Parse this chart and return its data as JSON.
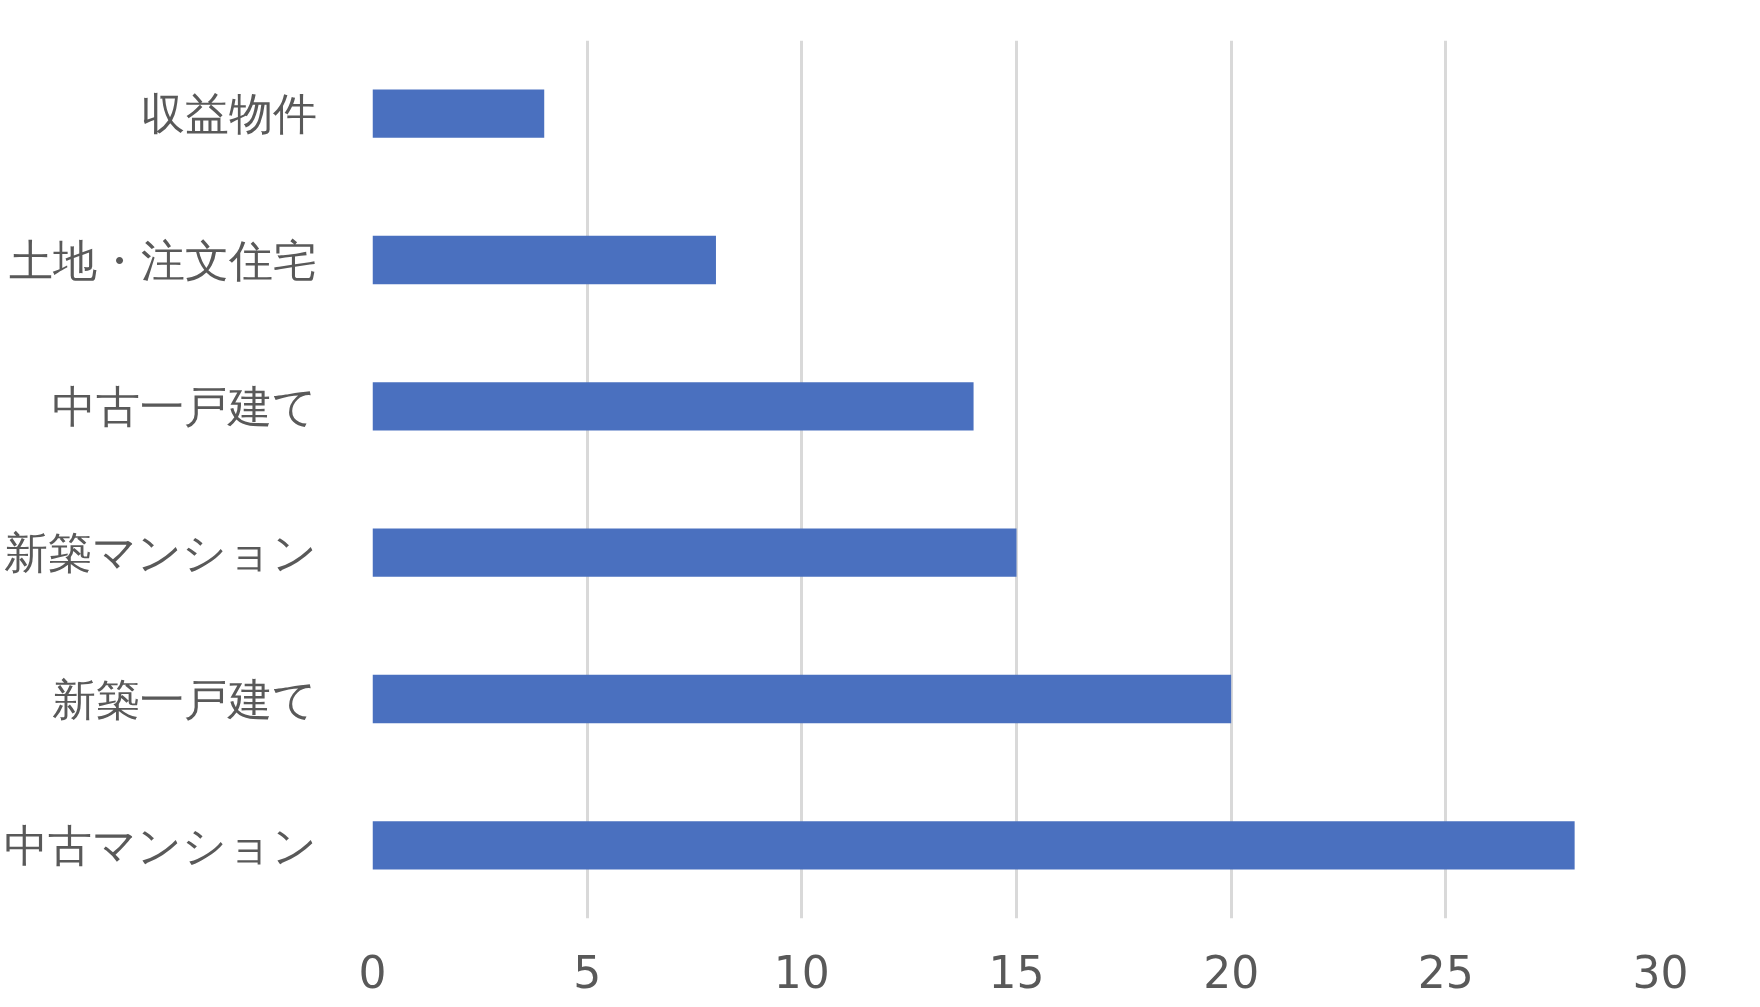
{
  "chart_data": {
    "type": "bar",
    "orientation": "horizontal",
    "categories": [
      "収益物件",
      "土地・注文住宅",
      "中古一戸建て",
      "新築マンション",
      "新築一戸建て",
      "中古マンション"
    ],
    "values": [
      4,
      8,
      14,
      15,
      20,
      28
    ],
    "color": "#4a70bf",
    "xlim": [
      0,
      30
    ],
    "xticks": [
      0,
      5,
      10,
      15,
      20,
      25,
      30
    ],
    "grid": "x"
  }
}
